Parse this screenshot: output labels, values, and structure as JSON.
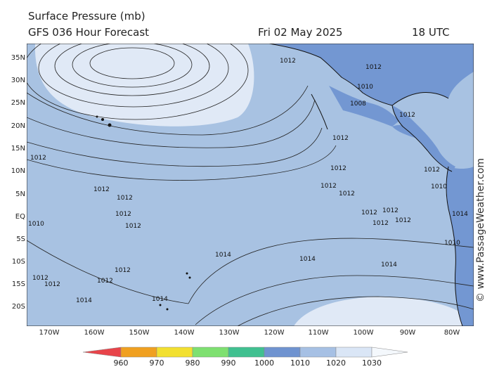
{
  "header": {
    "title": "Surface Pressure (mb)",
    "subtitle": "GFS 036 Hour Forecast",
    "date": "Fri 02 May 2025",
    "time": "18 UTC"
  },
  "credit": "© www.PassageWeather.com",
  "lat_labels": [
    "35N",
    "30N",
    "25N",
    "20N",
    "15N",
    "10N",
    "5N",
    "EQ",
    "5S",
    "10S",
    "15S",
    "20S"
  ],
  "lon_labels": [
    "170W",
    "160W",
    "150W",
    "140W",
    "130W",
    "120W",
    "110W",
    "100W",
    "90W",
    "80W"
  ],
  "isobar_labels": [
    "1012",
    "1014",
    "1010",
    "1008"
  ],
  "colorbar": {
    "ticks": [
      "960",
      "970",
      "980",
      "990",
      "1000",
      "1010",
      "1020",
      "1030"
    ],
    "colors": [
      "#e8444a",
      "#f0a020",
      "#f2e030",
      "#7ee070",
      "#40c090",
      "#6f93d0",
      "#a6c0e4",
      "#dae6f6",
      "#f4f8fc"
    ]
  },
  "colors": {
    "ocean": "#a8c2e2",
    "high": "#e0e9f6",
    "low": "#7397d2",
    "land": "#c8c8c8"
  }
}
